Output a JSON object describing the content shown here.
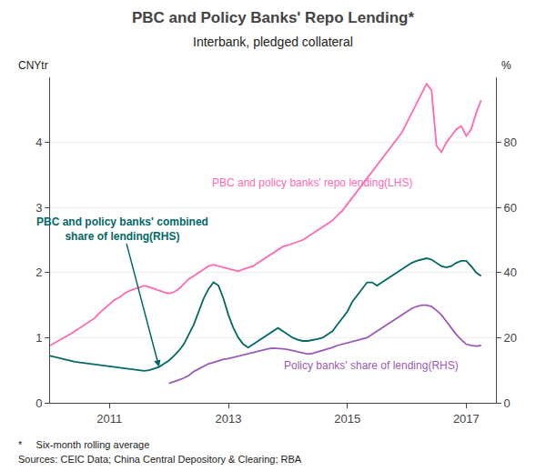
{
  "chart_data": {
    "type": "line",
    "title": "PBC and Policy Banks' Repo Lending*",
    "subtitle": "Interbank, pledged collateral",
    "ylabel": "CNYtr",
    "y2label": "%",
    "footnotes": [
      "*     Six-month rolling average",
      "Sources: CEIC Data; China Central Depository & Clearing; RBA"
    ],
    "xlim": [
      2010.0,
      2017.5
    ],
    "xticks": [
      2011,
      2013,
      2015,
      2017
    ],
    "ylim": [
      0,
      5
    ],
    "yticks": [
      0,
      1,
      2,
      3,
      4
    ],
    "y2lim": [
      0,
      100
    ],
    "y2ticks": [
      0,
      20,
      40,
      60,
      80
    ],
    "grid": true,
    "series": [
      {
        "name": "PBC and policy banks' repo lending(LHS)",
        "color": "#FF69B4",
        "x": [
          2010.0,
          2010.083,
          2010.167,
          2010.25,
          2010.333,
          2010.417,
          2010.5,
          2010.583,
          2010.667,
          2010.75,
          2010.833,
          2010.917,
          2011.0,
          2011.083,
          2011.167,
          2011.25,
          2011.333,
          2011.417,
          2011.5,
          2011.583,
          2011.667,
          2011.75,
          2011.833,
          2011.917,
          2012.0,
          2012.083,
          2012.167,
          2012.25,
          2012.333,
          2012.417,
          2012.5,
          2012.583,
          2012.667,
          2012.75,
          2012.833,
          2012.917,
          2013.0,
          2013.083,
          2013.167,
          2013.25,
          2013.333,
          2013.417,
          2013.5,
          2013.583,
          2013.667,
          2013.75,
          2013.833,
          2013.917,
          2014.0,
          2014.083,
          2014.167,
          2014.25,
          2014.333,
          2014.417,
          2014.5,
          2014.583,
          2014.667,
          2014.75,
          2014.833,
          2014.917,
          2015.0,
          2015.083,
          2015.167,
          2015.25,
          2015.333,
          2015.417,
          2015.5,
          2015.583,
          2015.667,
          2015.75,
          2015.833,
          2015.917,
          2016.0,
          2016.083,
          2016.167,
          2016.25,
          2016.333,
          2016.417,
          2016.5,
          2016.583,
          2016.667,
          2016.75,
          2016.833,
          2016.917,
          2017.0,
          2017.083,
          2017.167,
          2017.25
        ],
        "values": [
          0.88,
          0.92,
          0.96,
          1.0,
          1.05,
          1.1,
          1.15,
          1.2,
          1.25,
          1.3,
          1.38,
          1.45,
          1.52,
          1.58,
          1.62,
          1.68,
          1.72,
          1.75,
          1.78,
          1.8,
          1.78,
          1.75,
          1.72,
          1.7,
          1.68,
          1.7,
          1.75,
          1.82,
          1.9,
          1.95,
          2.0,
          2.05,
          2.1,
          2.12,
          2.1,
          2.08,
          2.05,
          2.03,
          2.02,
          2.05,
          2.08,
          2.1,
          2.15,
          2.2,
          2.25,
          2.3,
          2.35,
          2.4,
          2.42,
          2.45,
          2.48,
          2.5,
          2.55,
          2.6,
          2.65,
          2.7,
          2.75,
          2.8,
          2.88,
          2.95,
          3.05,
          3.15,
          3.25,
          3.35,
          3.45,
          3.55,
          3.65,
          3.75,
          3.85,
          3.95,
          4.05,
          4.15,
          4.3,
          4.45,
          4.6,
          4.75,
          4.9,
          4.8,
          3.95,
          3.85,
          4.0,
          4.1,
          4.2,
          4.25,
          4.1,
          4.2,
          4.45,
          4.65
        ]
      },
      {
        "name": "PBC and policy banks' combined\nshare of lending(RHS)",
        "color": "#006868",
        "axis": "y2",
        "x": [
          2010.0,
          2010.083,
          2010.167,
          2010.25,
          2010.333,
          2010.417,
          2010.5,
          2010.583,
          2010.667,
          2010.75,
          2010.833,
          2010.917,
          2011.0,
          2011.083,
          2011.167,
          2011.25,
          2011.333,
          2011.417,
          2011.5,
          2011.583,
          2011.667,
          2011.75,
          2011.833,
          2011.917,
          2012.0,
          2012.083,
          2012.167,
          2012.25,
          2012.333,
          2012.417,
          2012.5,
          2012.583,
          2012.667,
          2012.75,
          2012.833,
          2012.917,
          2013.0,
          2013.083,
          2013.167,
          2013.25,
          2013.333,
          2013.417,
          2013.5,
          2013.583,
          2013.667,
          2013.75,
          2013.833,
          2013.917,
          2014.0,
          2014.083,
          2014.167,
          2014.25,
          2014.333,
          2014.417,
          2014.5,
          2014.583,
          2014.667,
          2014.75,
          2014.833,
          2014.917,
          2015.0,
          2015.083,
          2015.167,
          2015.25,
          2015.333,
          2015.417,
          2015.5,
          2015.583,
          2015.667,
          2015.75,
          2015.833,
          2015.917,
          2016.0,
          2016.083,
          2016.167,
          2016.25,
          2016.333,
          2016.417,
          2016.5,
          2016.583,
          2016.667,
          2016.75,
          2016.833,
          2016.917,
          2017.0,
          2017.083,
          2017.167,
          2017.25
        ],
        "values": [
          14.4,
          14.0,
          13.6,
          13.2,
          13.0,
          12.6,
          12.4,
          12.2,
          12.0,
          11.8,
          11.6,
          11.4,
          11.2,
          10.8,
          10.6,
          10.4,
          10.2,
          10.0,
          10.0,
          9.8,
          10.0,
          10.4,
          11.0,
          12.0,
          13.0,
          14.4,
          16.0,
          18.0,
          21.0,
          24.0,
          28.0,
          32.0,
          35.0,
          37.0,
          36.0,
          32.0,
          27.0,
          23.0,
          20.0,
          18.0,
          17.0,
          18.0,
          19.0,
          20.0,
          21.0,
          22.0,
          23.0,
          22.0,
          21.0,
          20.0,
          19.4,
          19.0,
          19.0,
          19.2,
          19.6,
          20.0,
          21.0,
          22.0,
          24.0,
          26.0,
          28.0,
          31.0,
          33.0,
          35.0,
          37.0,
          37.0,
          36.0,
          37.0,
          38.0,
          39.0,
          40.0,
          41.0,
          42.0,
          43.0,
          43.6,
          44.0,
          44.4,
          44.0,
          43.0,
          42.0,
          41.6,
          42.0,
          43.0,
          43.6,
          43.6,
          42.0,
          40.0,
          39.0
        ]
      },
      {
        "name": "Policy banks' share of lending(RHS)",
        "color": "#9B59B6",
        "axis": "y2",
        "x": [
          2012.0,
          2012.083,
          2012.167,
          2012.25,
          2012.333,
          2012.417,
          2012.5,
          2012.583,
          2012.667,
          2012.75,
          2012.833,
          2012.917,
          2013.0,
          2013.083,
          2013.167,
          2013.25,
          2013.333,
          2013.417,
          2013.5,
          2013.583,
          2013.667,
          2013.75,
          2013.833,
          2013.917,
          2014.0,
          2014.083,
          2014.167,
          2014.25,
          2014.333,
          2014.417,
          2014.5,
          2014.583,
          2014.667,
          2014.75,
          2014.833,
          2014.917,
          2015.0,
          2015.083,
          2015.167,
          2015.25,
          2015.333,
          2015.417,
          2015.5,
          2015.583,
          2015.667,
          2015.75,
          2015.833,
          2015.917,
          2016.0,
          2016.083,
          2016.167,
          2016.25,
          2016.333,
          2016.417,
          2016.5,
          2016.583,
          2016.667,
          2016.75,
          2016.833,
          2016.917,
          2017.0,
          2017.083,
          2017.167,
          2017.25
        ],
        "values": [
          6.0,
          6.4,
          7.0,
          7.6,
          8.4,
          9.6,
          10.4,
          11.2,
          12.0,
          12.4,
          13.0,
          13.4,
          13.6,
          14.0,
          14.4,
          14.8,
          15.2,
          15.6,
          16.0,
          16.4,
          16.6,
          16.8,
          16.8,
          16.6,
          16.4,
          16.0,
          15.6,
          15.2,
          15.0,
          15.2,
          15.6,
          16.0,
          16.4,
          17.0,
          17.6,
          18.0,
          18.4,
          18.6,
          19.0,
          19.4,
          20.0,
          21.0,
          22.0,
          23.0,
          24.0,
          25.0,
          26.0,
          27.0,
          28.0,
          29.0,
          29.6,
          30.0,
          30.0,
          29.6,
          28.4,
          27.0,
          25.0,
          23.0,
          21.0,
          19.4,
          18.0,
          17.6,
          17.4,
          17.6
        ]
      }
    ]
  }
}
